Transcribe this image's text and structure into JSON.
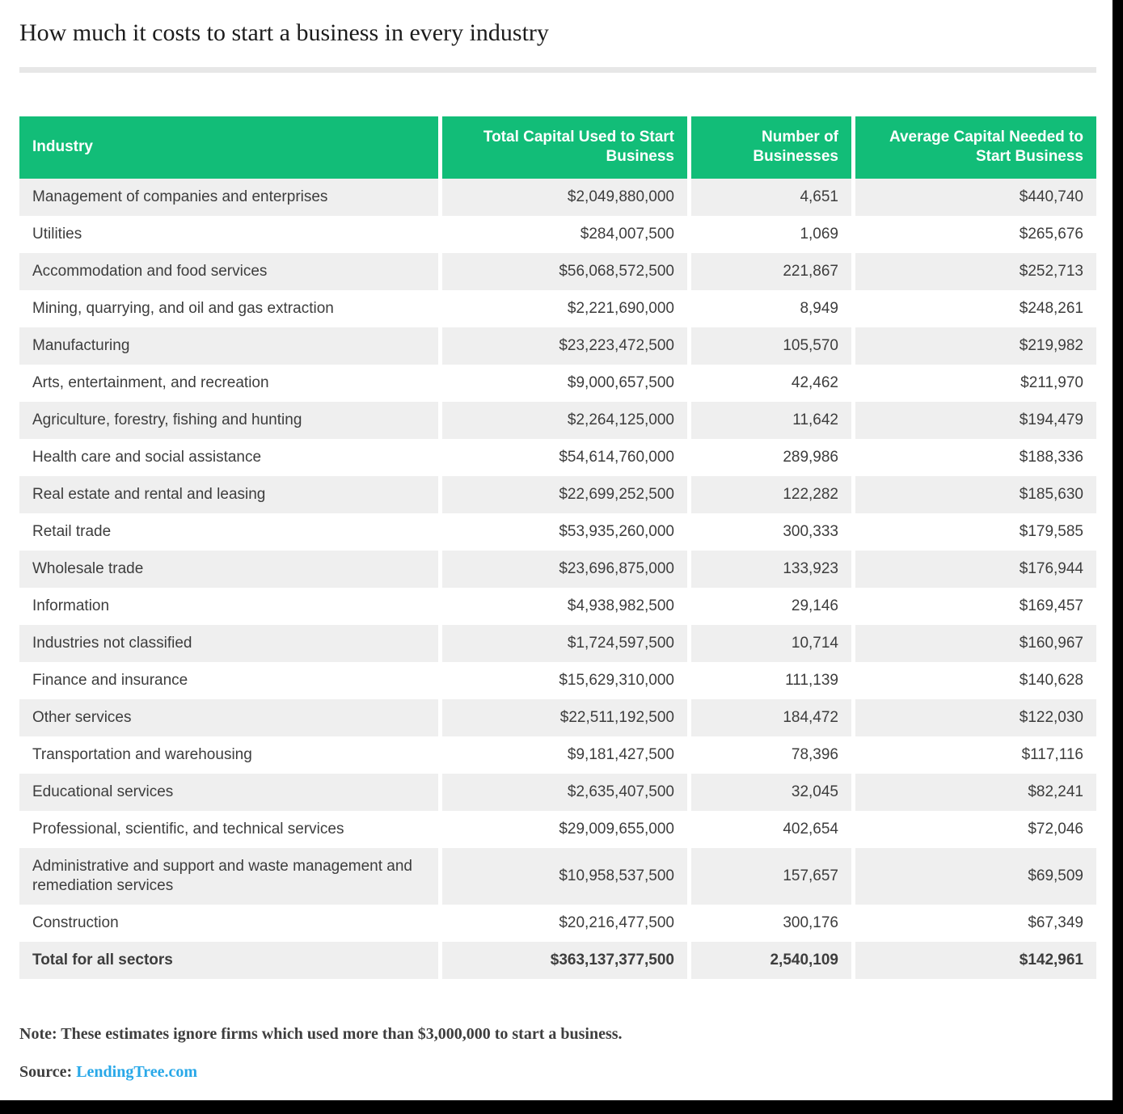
{
  "chart_data": {
    "type": "table",
    "title": "How much it costs to start a business in every industry",
    "columns": [
      "Industry",
      "Total Capital Used to Start Business",
      "Number of Businesses",
      "Average Capital Needed to Start Business"
    ],
    "rows": [
      {
        "industry": "Management of companies and enterprises",
        "total_capital": "$2,049,880,000",
        "businesses": "4,651",
        "avg_capital": "$440,740"
      },
      {
        "industry": "Utilities",
        "total_capital": "$284,007,500",
        "businesses": "1,069",
        "avg_capital": "$265,676"
      },
      {
        "industry": "Accommodation and food services",
        "total_capital": "$56,068,572,500",
        "businesses": "221,867",
        "avg_capital": "$252,713"
      },
      {
        "industry": "Mining, quarrying, and oil and gas extraction",
        "total_capital": "$2,221,690,000",
        "businesses": "8,949",
        "avg_capital": "$248,261"
      },
      {
        "industry": "Manufacturing",
        "total_capital": "$23,223,472,500",
        "businesses": "105,570",
        "avg_capital": "$219,982"
      },
      {
        "industry": "Arts, entertainment, and recreation",
        "total_capital": "$9,000,657,500",
        "businesses": "42,462",
        "avg_capital": "$211,970"
      },
      {
        "industry": "Agriculture, forestry, fishing and hunting",
        "total_capital": "$2,264,125,000",
        "businesses": "11,642",
        "avg_capital": "$194,479"
      },
      {
        "industry": "Health care and social assistance",
        "total_capital": "$54,614,760,000",
        "businesses": "289,986",
        "avg_capital": "$188,336"
      },
      {
        "industry": "Real estate and rental and leasing",
        "total_capital": "$22,699,252,500",
        "businesses": "122,282",
        "avg_capital": "$185,630"
      },
      {
        "industry": "Retail trade",
        "total_capital": "$53,935,260,000",
        "businesses": "300,333",
        "avg_capital": "$179,585"
      },
      {
        "industry": "Wholesale trade",
        "total_capital": "$23,696,875,000",
        "businesses": "133,923",
        "avg_capital": "$176,944"
      },
      {
        "industry": "Information",
        "total_capital": "$4,938,982,500",
        "businesses": "29,146",
        "avg_capital": "$169,457"
      },
      {
        "industry": "Industries not classified",
        "total_capital": "$1,724,597,500",
        "businesses": "10,714",
        "avg_capital": "$160,967"
      },
      {
        "industry": "Finance and insurance",
        "total_capital": "$15,629,310,000",
        "businesses": "111,139",
        "avg_capital": "$140,628"
      },
      {
        "industry": "Other services",
        "total_capital": "$22,511,192,500",
        "businesses": "184,472",
        "avg_capital": "$122,030"
      },
      {
        "industry": "Transportation and warehousing",
        "total_capital": "$9,181,427,500",
        "businesses": "78,396",
        "avg_capital": "$117,116"
      },
      {
        "industry": "Educational services",
        "total_capital": "$2,635,407,500",
        "businesses": "32,045",
        "avg_capital": "$82,241"
      },
      {
        "industry": "Professional, scientific, and technical services",
        "total_capital": "$29,009,655,000",
        "businesses": "402,654",
        "avg_capital": "$72,046"
      },
      {
        "industry": "Administrative and support and waste management and remediation services",
        "total_capital": "$10,958,537,500",
        "businesses": "157,657",
        "avg_capital": "$69,509"
      },
      {
        "industry": "Construction",
        "total_capital": "$20,216,477,500",
        "businesses": "300,176",
        "avg_capital": "$67,349"
      }
    ],
    "total_row": {
      "industry": "Total for all sectors",
      "total_capital": "$363,137,377,500",
      "businesses": "2,540,109",
      "avg_capital": "$142,961"
    }
  },
  "note": "Note: These estimates ignore firms which used more than $3,000,000 to start a business.",
  "source": {
    "label": "Source:",
    "link_text": "LendingTree.com"
  },
  "colors": {
    "header_green": "#12bd78",
    "row_alt": "#efefef",
    "link_blue": "#29a8e8",
    "letterbox_black": "#000000"
  }
}
